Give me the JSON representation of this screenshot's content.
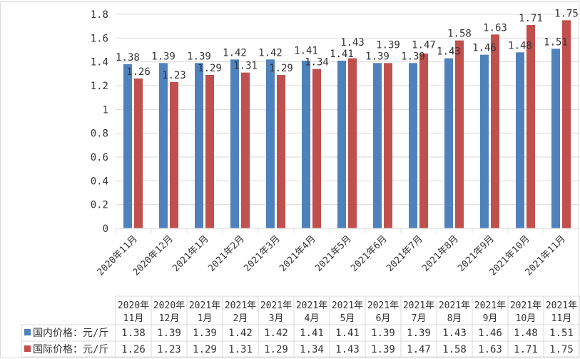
{
  "chart_data": {
    "type": "bar",
    "categories": [
      "2020年11月",
      "2020年12月",
      "2021年1月",
      "2021年2月",
      "2021年3月",
      "2021年4月",
      "2021年5月",
      "2021年6月",
      "2021年7月",
      "2021年8月",
      "2021年9月",
      "2021年10月",
      "2021年11月"
    ],
    "table_headers": [
      [
        "2020年",
        "11月"
      ],
      [
        "2020年",
        "12月"
      ],
      [
        "2021年",
        "1月"
      ],
      [
        "2021年",
        "2月"
      ],
      [
        "2021年",
        "3月"
      ],
      [
        "2021年",
        "4月"
      ],
      [
        "2021年",
        "5月"
      ],
      [
        "2021年",
        "6月"
      ],
      [
        "2021年",
        "7月"
      ],
      [
        "2021年",
        "8月"
      ],
      [
        "2021年",
        "9月"
      ],
      [
        "2021年",
        "10月"
      ],
      [
        "2021年",
        "11月"
      ]
    ],
    "series": [
      {
        "name": "国内价格：元/斤",
        "color": "#4f81bd",
        "values": [
          1.38,
          1.39,
          1.39,
          1.42,
          1.42,
          1.41,
          1.41,
          1.39,
          1.39,
          1.43,
          1.46,
          1.48,
          1.51
        ]
      },
      {
        "name": "国际价格：元/斤",
        "color": "#c0504d",
        "values": [
          1.26,
          1.23,
          1.29,
          1.31,
          1.29,
          1.34,
          1.43,
          1.39,
          1.47,
          1.58,
          1.63,
          1.71,
          1.75
        ]
      }
    ],
    "ylim": [
      0,
      1.8
    ],
    "yticks": [
      "0",
      "0.2",
      "0.4",
      "0.6",
      "0.8",
      "1",
      "1.2",
      "1.4",
      "1.6",
      "1.8"
    ],
    "grid": true,
    "legend": "data-table-bottom",
    "title": "",
    "xlabel": "",
    "ylabel": ""
  }
}
